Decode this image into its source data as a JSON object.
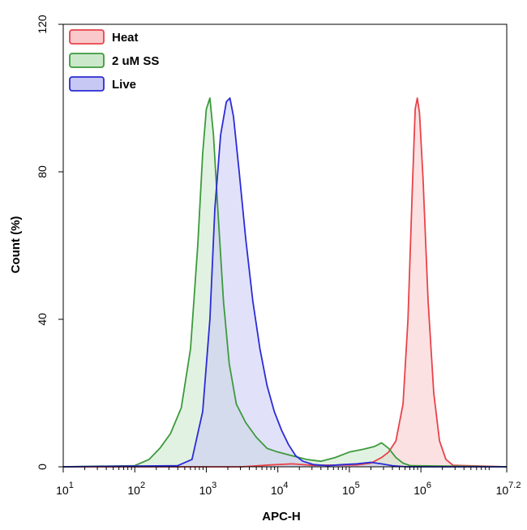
{
  "chart_data": {
    "type": "area",
    "xlabel": "APC-H",
    "ylabel": "Count (%)",
    "xscale": "log",
    "xlim": [
      1,
      7.2
    ],
    "ylim": [
      0,
      120
    ],
    "x_ticks": [
      {
        "value": 1,
        "base": "10",
        "exp": "1"
      },
      {
        "value": 2,
        "base": "10",
        "exp": "2"
      },
      {
        "value": 3,
        "base": "10",
        "exp": "3"
      },
      {
        "value": 4,
        "base": "10",
        "exp": "4"
      },
      {
        "value": 5,
        "base": "10",
        "exp": "5"
      },
      {
        "value": 6,
        "base": "10",
        "exp": "6"
      },
      {
        "value": 7.2,
        "base": "10",
        "exp": "7.2"
      }
    ],
    "y_ticks": [
      {
        "value": 0,
        "label": "0"
      },
      {
        "value": 40,
        "label": "40"
      },
      {
        "value": 80,
        "label": "80"
      },
      {
        "value": 120,
        "label": "120"
      }
    ],
    "grid": false,
    "legend_position": "top-left",
    "series": [
      {
        "name": "Heat",
        "stroke": "#e8434a",
        "fill": "#f9c9cb",
        "points": [
          [
            1.0,
            0
          ],
          [
            3.5,
            0
          ],
          [
            3.9,
            0.5
          ],
          [
            4.2,
            0.8
          ],
          [
            4.5,
            0.4
          ],
          [
            5.1,
            0.5
          ],
          [
            5.3,
            1
          ],
          [
            5.45,
            2.5
          ],
          [
            5.55,
            4
          ],
          [
            5.65,
            7
          ],
          [
            5.75,
            17
          ],
          [
            5.82,
            40
          ],
          [
            5.88,
            75
          ],
          [
            5.92,
            97
          ],
          [
            5.95,
            100
          ],
          [
            5.98,
            96
          ],
          [
            6.03,
            78
          ],
          [
            6.1,
            45
          ],
          [
            6.18,
            20
          ],
          [
            6.26,
            7
          ],
          [
            6.35,
            2
          ],
          [
            6.45,
            0.4
          ],
          [
            7.2,
            0
          ]
        ]
      },
      {
        "name": "2 uM SS",
        "stroke": "#3c9a3c",
        "fill": "#cbe8cb",
        "points": [
          [
            1.0,
            0
          ],
          [
            2.0,
            0.3
          ],
          [
            2.2,
            2
          ],
          [
            2.35,
            5
          ],
          [
            2.5,
            9
          ],
          [
            2.65,
            16
          ],
          [
            2.78,
            32
          ],
          [
            2.88,
            60
          ],
          [
            2.95,
            85
          ],
          [
            3.0,
            97
          ],
          [
            3.05,
            100
          ],
          [
            3.1,
            90
          ],
          [
            3.16,
            70
          ],
          [
            3.24,
            45
          ],
          [
            3.32,
            28
          ],
          [
            3.42,
            17
          ],
          [
            3.55,
            12
          ],
          [
            3.7,
            8
          ],
          [
            3.85,
            5
          ],
          [
            4.0,
            4
          ],
          [
            4.2,
            3
          ],
          [
            4.4,
            2
          ],
          [
            4.6,
            1.5
          ],
          [
            4.8,
            2.5
          ],
          [
            5.0,
            4
          ],
          [
            5.2,
            4.8
          ],
          [
            5.35,
            5.5
          ],
          [
            5.45,
            6.5
          ],
          [
            5.55,
            5
          ],
          [
            5.65,
            2.5
          ],
          [
            5.75,
            1
          ],
          [
            5.85,
            0.3
          ],
          [
            7.2,
            0
          ]
        ]
      },
      {
        "name": "Live",
        "stroke": "#2b2bd6",
        "fill": "#c8c8f4",
        "points": [
          [
            1.0,
            0
          ],
          [
            2.6,
            0.3
          ],
          [
            2.8,
            2
          ],
          [
            2.95,
            15
          ],
          [
            3.05,
            40
          ],
          [
            3.12,
            70
          ],
          [
            3.2,
            90
          ],
          [
            3.28,
            99
          ],
          [
            3.33,
            100
          ],
          [
            3.38,
            95
          ],
          [
            3.46,
            80
          ],
          [
            3.55,
            62
          ],
          [
            3.65,
            45
          ],
          [
            3.75,
            32
          ],
          [
            3.85,
            22
          ],
          [
            3.95,
            15
          ],
          [
            4.05,
            10
          ],
          [
            4.15,
            6
          ],
          [
            4.25,
            3
          ],
          [
            4.35,
            1.5
          ],
          [
            4.5,
            0.6
          ],
          [
            4.7,
            0.3
          ],
          [
            4.9,
            0.6
          ],
          [
            5.1,
            0.8
          ],
          [
            5.3,
            1.2
          ],
          [
            5.45,
            0.8
          ],
          [
            5.6,
            0.3
          ],
          [
            5.8,
            0
          ],
          [
            7.2,
            0
          ]
        ]
      }
    ]
  }
}
